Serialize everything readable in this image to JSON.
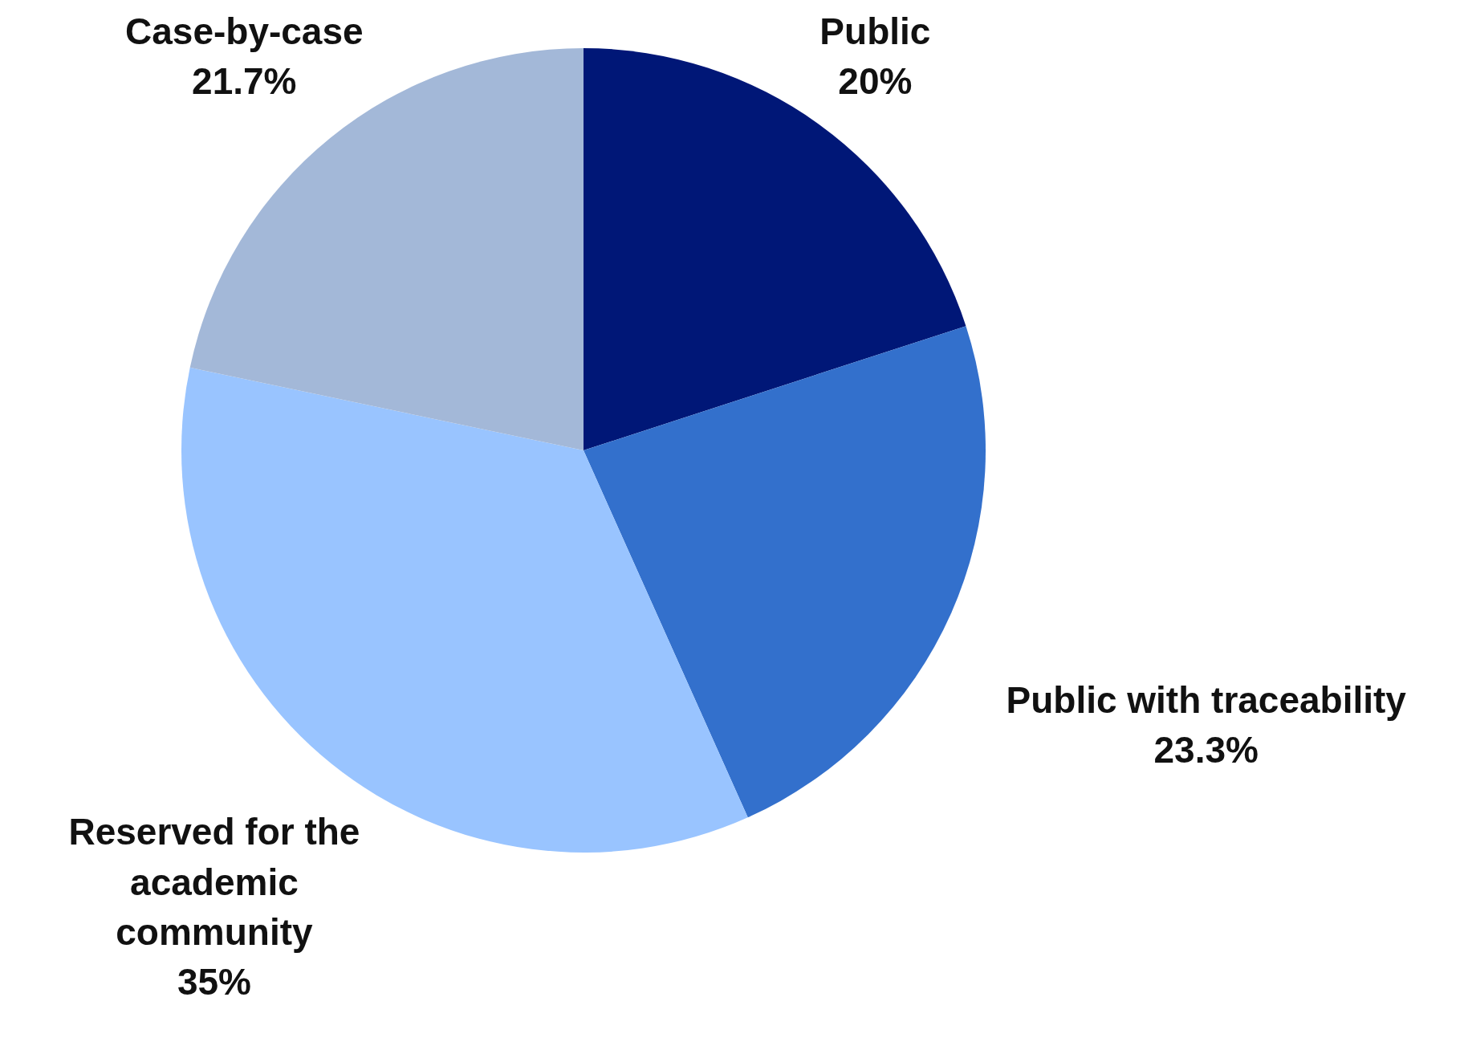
{
  "chart_data": {
    "type": "pie",
    "categories": [
      "Public",
      "Public with traceability",
      "Reserved for the academic community",
      "Case-by-case"
    ],
    "values": [
      20,
      23.3,
      35,
      21.7
    ],
    "value_labels": [
      "20%",
      "23.3%",
      "35%",
      "21.7%"
    ],
    "colors": [
      "#001777",
      "#3370cc",
      "#99c4ff",
      "#a3b8d8"
    ]
  }
}
